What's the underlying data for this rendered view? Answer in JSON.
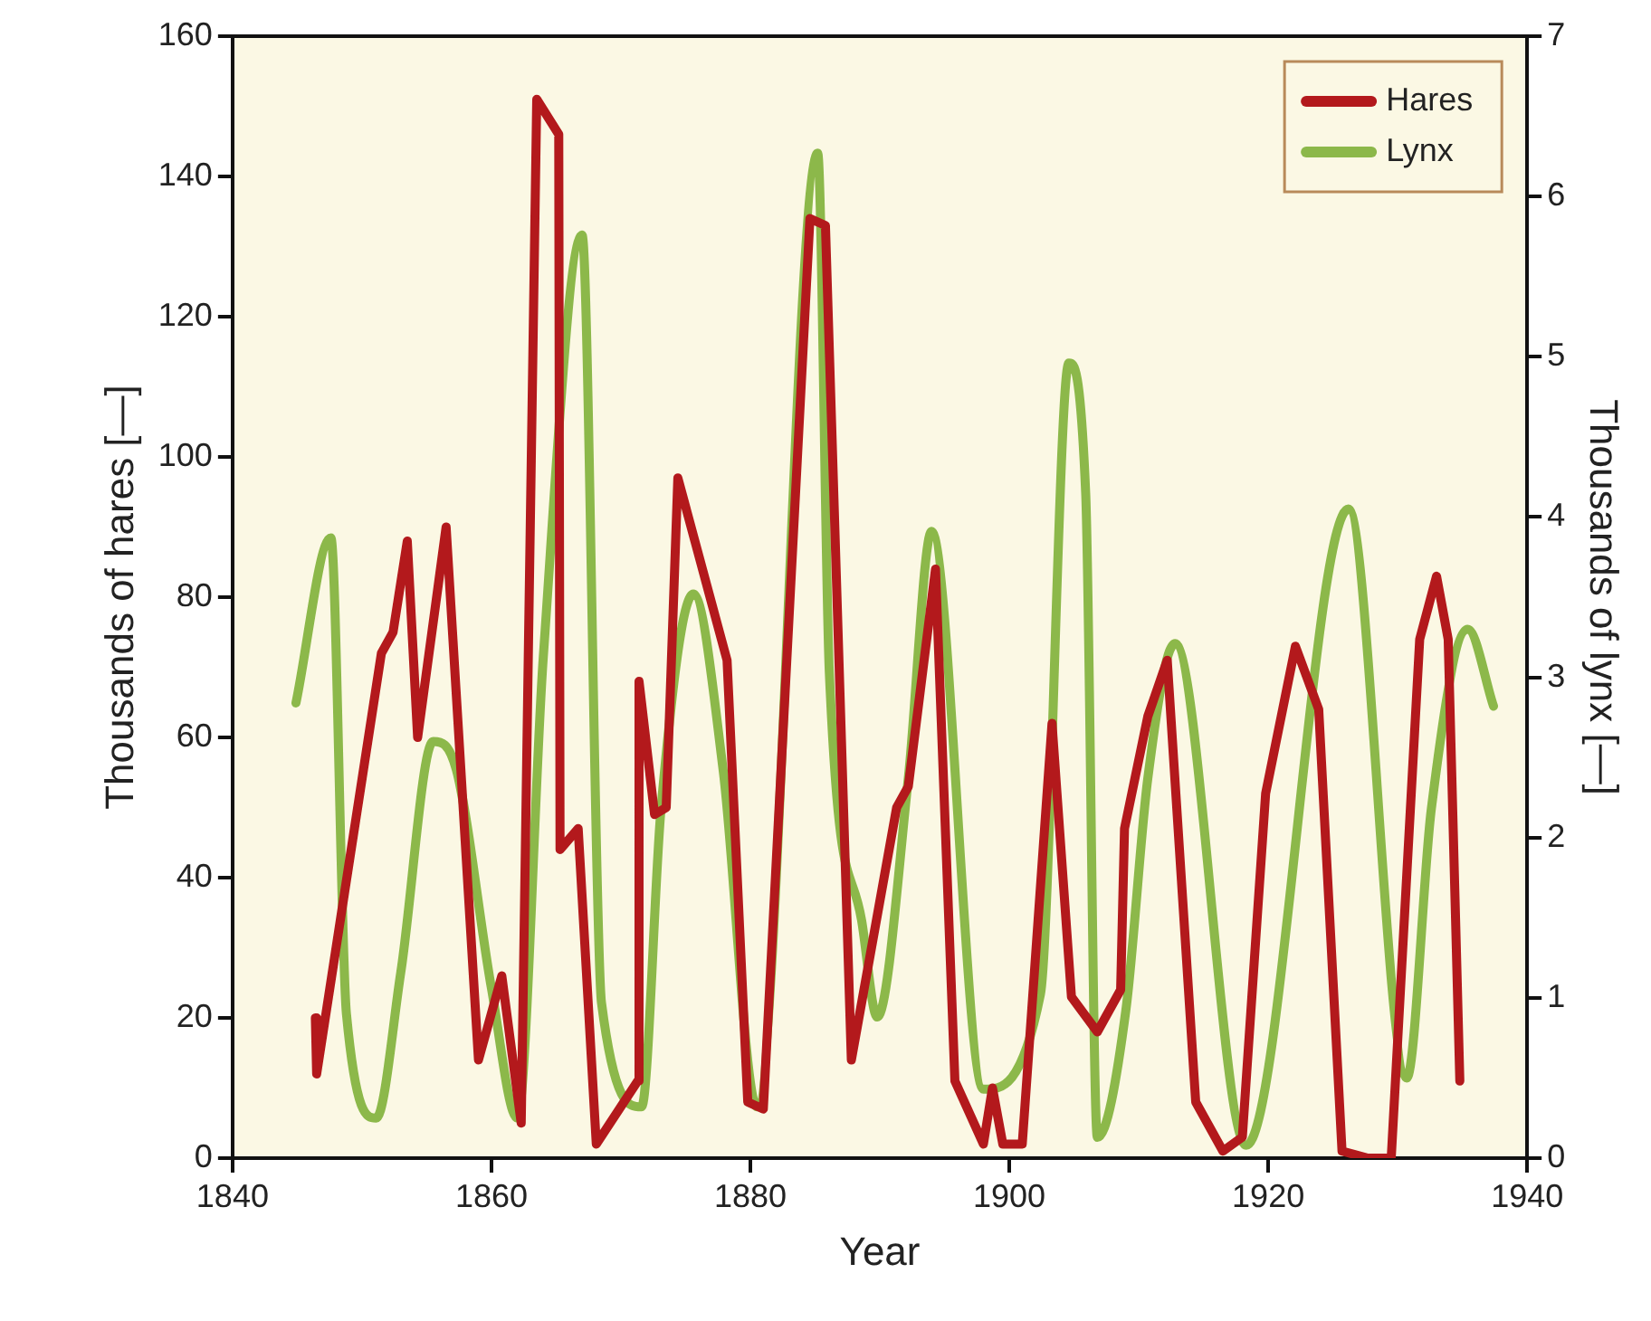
{
  "chart_data": {
    "type": "line",
    "xlabel": "Year",
    "ylabel": "Thousands of hares [—]",
    "y2label": "Thousands of lynx [—]",
    "xlim": [
      1840,
      1940
    ],
    "xticks": [
      1840,
      1860,
      1880,
      1900,
      1920,
      1940
    ],
    "ylim": [
      0,
      160
    ],
    "yticks": [
      0,
      20,
      40,
      60,
      80,
      100,
      120,
      140,
      160
    ],
    "y2lim": [
      0,
      7
    ],
    "y2ticks": [
      0,
      1,
      2,
      3,
      4,
      5,
      6,
      7
    ],
    "legend": "top right",
    "grid": false,
    "series": [
      {
        "name": "Hares",
        "color": "#b3191c",
        "x": [
          1846.4,
          1846.5,
          1851.5,
          1852.4,
          1853.5,
          1854.3,
          1856.5,
          1859,
          1860.8,
          1862.3,
          1863.5,
          1865.2,
          1865.3,
          1866.7,
          1868.1,
          1871.3,
          1871.4,
          1872.6,
          1873.5,
          1874.4,
          1878.2,
          1879.8,
          1881,
          1884.6,
          1885.8,
          1887.8,
          1891.3,
          1892.2,
          1894.3,
          1895.8,
          1898,
          1898.7,
          1899.5,
          1901,
          1903.3,
          1904.8,
          1906.8,
          1908.6,
          1908.9,
          1910.7,
          1912.2,
          1914.4,
          1916.5,
          1918,
          1919.8,
          1922.1,
          1923.9,
          1925.7,
          1927.7,
          1929.5,
          1931.7,
          1933,
          1933.9,
          1934.8
        ],
        "values": [
          20,
          12,
          72,
          75,
          88,
          60,
          90,
          14,
          26,
          5,
          151,
          146,
          44,
          47,
          2,
          11,
          68,
          49,
          50,
          97,
          71,
          8,
          7,
          134,
          133,
          14,
          50,
          53,
          84,
          11,
          2,
          10,
          2,
          2,
          62,
          23,
          18,
          24,
          47,
          63,
          71,
          8,
          1,
          3,
          52,
          73,
          64,
          1,
          0,
          0,
          74,
          83,
          74,
          11
        ]
      },
      {
        "name": "Lynx",
        "color": "#8cb84a",
        "axis": "y2",
        "x": [
          1844.9,
          1847.6,
          1848.8,
          1851.1,
          1853,
          1855.5,
          1857.3,
          1860,
          1862,
          1864,
          1867,
          1868.5,
          1871.6,
          1873.1,
          1875.6,
          1877.9,
          1880.5,
          1885.2,
          1886.1,
          1888.6,
          1889.8,
          1892.2,
          1894,
          1898,
          1902.4,
          1904.6,
          1905.9,
          1906.8,
          1909,
          1910.7,
          1912.8,
          1918.3,
          1926.2,
          1930.7,
          1932.6,
          1935.4,
          1937.4
        ],
        "values": [
          2.84,
          3.87,
          0.9,
          0.25,
          1.16,
          2.6,
          2.42,
          1.06,
          0.25,
          3.12,
          5.76,
          0.97,
          0.32,
          2.18,
          3.52,
          2.42,
          0.32,
          6.27,
          3.03,
          1.48,
          0.88,
          2.37,
          3.91,
          0.43,
          1.02,
          4.96,
          4.15,
          0.13,
          0.92,
          2.37,
          3.21,
          0.08,
          4.05,
          0.5,
          2.18,
          3.3,
          2.82
        ]
      }
    ]
  }
}
